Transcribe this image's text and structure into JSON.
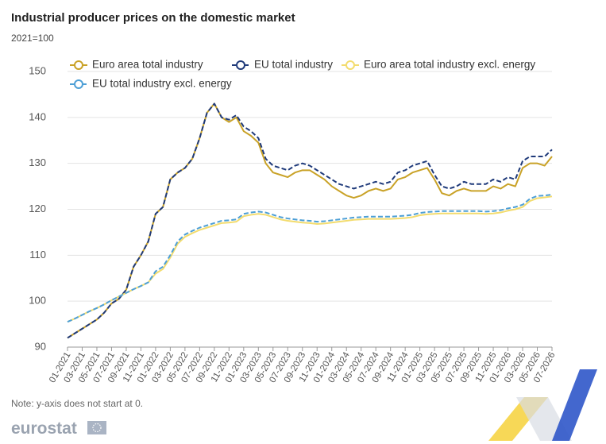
{
  "chart_data": {
    "type": "line",
    "title": "Industrial producer prices on the domestic market",
    "subtitle": "2021=100",
    "note": "Note: y-axis does not start at 0.",
    "source": "eurostat",
    "categories": [
      "01-2021",
      null,
      "03-2021",
      null,
      "05-2021",
      null,
      "07-2021",
      null,
      "09-2021",
      null,
      "11-2021",
      null,
      "01-2022",
      null,
      "03-2022",
      null,
      "05-2022",
      null,
      "07-2022",
      null,
      "09-2022",
      null,
      "11-2022",
      null,
      "01-2023",
      null,
      "03-2023",
      null,
      "05-2023",
      null,
      "07-2023",
      null,
      "09-2023",
      null,
      "11-2023",
      null,
      "01-2024",
      null,
      "03-2024",
      null,
      "05-2024",
      null,
      "07-2024",
      null,
      "09-2024",
      null,
      "11-2024",
      null,
      "01-2025",
      null,
      "03-2025",
      null,
      "05-2025",
      null,
      "07-2025",
      null,
      "09-2025",
      null,
      "11-2025",
      null,
      "01-2026",
      null,
      "03-2026",
      null,
      "05-2026",
      null,
      "07-2026"
    ],
    "series": [
      {
        "name": "Euro area total industry",
        "color": "#c9a227",
        "dashed": false,
        "values": [
          92,
          93,
          94,
          95,
          96,
          97.5,
          99.5,
          100.5,
          102.5,
          107.5,
          110,
          113,
          119,
          120.5,
          126.5,
          128,
          129,
          131,
          135.5,
          141,
          143,
          140,
          139,
          140,
          137,
          136,
          134.5,
          130,
          128,
          127.5,
          127,
          128,
          128.5,
          128.5,
          127.5,
          126.5,
          125,
          124,
          123,
          122.5,
          123,
          124,
          124.5,
          124,
          124.5,
          126.5,
          127,
          128,
          128.5,
          129,
          126.5,
          123.5,
          123,
          124,
          124.5,
          124,
          124,
          124,
          125,
          124.5,
          125.5,
          125,
          129,
          130,
          130,
          129.5,
          131.5
        ]
      },
      {
        "name": "EU total industry",
        "color": "#1f3a7a",
        "dashed": true,
        "values": [
          92,
          93,
          94,
          95,
          96,
          97.5,
          99.5,
          100.5,
          102.5,
          107.5,
          110,
          113,
          119,
          120.5,
          126.5,
          128,
          129,
          131,
          135.5,
          141,
          143,
          140,
          139.5,
          140.5,
          138,
          137,
          135.5,
          131,
          129.5,
          129,
          128.5,
          129.5,
          130,
          129.5,
          128.5,
          127.5,
          126.5,
          125.5,
          125,
          124.5,
          125,
          125.5,
          126,
          125.5,
          126,
          128,
          128.5,
          129.5,
          130,
          130.5,
          127.5,
          125,
          124.5,
          125,
          126,
          125.5,
          125.5,
          125.5,
          126.5,
          126,
          127,
          126.5,
          130.5,
          131.5,
          131.5,
          131.5,
          133
        ]
      },
      {
        "name": "Euro area total industry excl. energy",
        "color": "#f3dc6e",
        "dashed": false,
        "values": [
          95.5,
          96.2,
          97,
          97.8,
          98.5,
          99.3,
          100.2,
          101,
          101.8,
          102.6,
          103.3,
          104.1,
          106,
          107,
          109.5,
          112.5,
          114,
          114.8,
          115.5,
          116,
          116.5,
          117,
          117.1,
          117.3,
          118.5,
          118.8,
          119,
          118.8,
          118.3,
          117.8,
          117.5,
          117.3,
          117.1,
          117,
          116.8,
          116.9,
          117.1,
          117.3,
          117.5,
          117.7,
          117.8,
          117.9,
          117.9,
          117.9,
          117.9,
          118,
          118.1,
          118.3,
          118.7,
          118.9,
          119,
          119.1,
          119.1,
          119.1,
          119.1,
          119.1,
          119.1,
          119,
          119.1,
          119.3,
          119.7,
          120,
          120.5,
          121.8,
          122.4,
          122.6,
          122.8
        ]
      },
      {
        "name": "EU total industry excl. energy",
        "color": "#4d9fd6",
        "dashed": true,
        "values": [
          95.5,
          96.2,
          97,
          97.8,
          98.5,
          99.3,
          100.2,
          101,
          101.8,
          102.6,
          103.3,
          104.1,
          106.5,
          107.5,
          110,
          113,
          114.5,
          115.3,
          116,
          116.5,
          117,
          117.5,
          117.6,
          117.8,
          119,
          119.3,
          119.5,
          119.3,
          118.8,
          118.3,
          118,
          117.8,
          117.6,
          117.5,
          117.3,
          117.4,
          117.6,
          117.8,
          118,
          118.2,
          118.3,
          118.4,
          118.4,
          118.4,
          118.4,
          118.5,
          118.6,
          118.8,
          119.2,
          119.4,
          119.5,
          119.6,
          119.6,
          119.6,
          119.6,
          119.6,
          119.6,
          119.5,
          119.6,
          119.8,
          120.2,
          120.5,
          121,
          122.3,
          122.9,
          123,
          123.2
        ]
      }
    ],
    "ylim": [
      90,
      150
    ],
    "yticks": [
      90,
      100,
      110,
      120,
      130,
      140,
      150
    ],
    "grid": true,
    "legend": "top"
  }
}
